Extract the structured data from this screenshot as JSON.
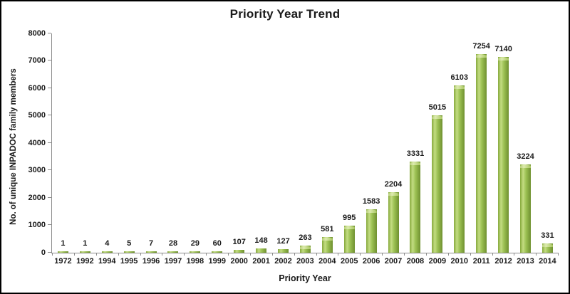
{
  "chart_data": {
    "type": "bar",
    "title": "Priority Year Trend",
    "xlabel": "Priority Year",
    "ylabel": "No. of unique INPADOC family members",
    "categories": [
      "1972",
      "1992",
      "1994",
      "1995",
      "1996",
      "1997",
      "1998",
      "1999",
      "2000",
      "2001",
      "2002",
      "2003",
      "2004",
      "2005",
      "2006",
      "2007",
      "2008",
      "2009",
      "2010",
      "2011",
      "2012",
      "2013",
      "2014"
    ],
    "values": [
      1,
      1,
      4,
      5,
      7,
      28,
      29,
      60,
      107,
      148,
      127,
      263,
      581,
      995,
      1583,
      2204,
      3331,
      5015,
      6103,
      7254,
      7140,
      3224,
      331
    ],
    "ylim": [
      0,
      8000
    ],
    "yticks": [
      0,
      1000,
      2000,
      3000,
      4000,
      5000,
      6000,
      7000,
      8000
    ],
    "grid": false,
    "legend": "none",
    "data_labels": true
  },
  "colors": {
    "bar_edge_dark": "#6f9030",
    "bar_edge_left": "#86a93c",
    "bar_highlight": "#c3dc82",
    "bar_mid": "#9cc153",
    "bar_cap_light": "#dcebae",
    "bar_cap_mid": "#b8cf7a",
    "bar_cap_dark": "#a9c661",
    "axis_line": "#8c8c8c",
    "text": "#1a1a1a",
    "frame_border": "#000000",
    "background": "#ffffff"
  }
}
